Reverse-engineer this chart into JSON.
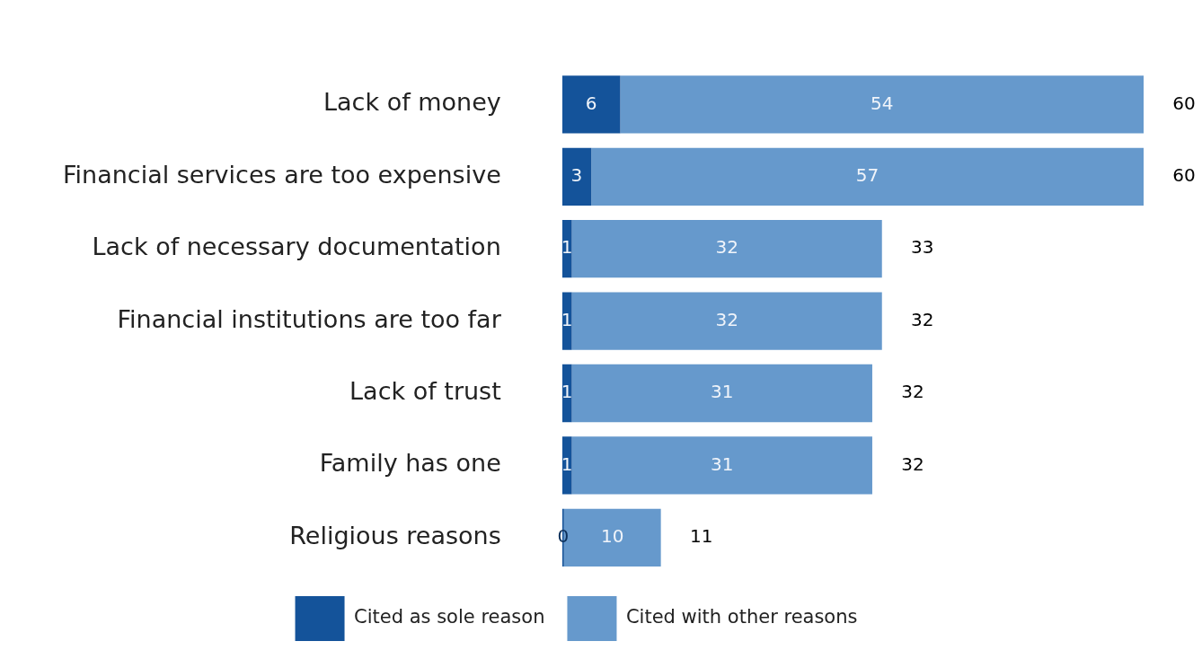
{
  "chart_data": {
    "type": "bar",
    "orientation": "horizontal",
    "stacked": true,
    "categories": [
      "Lack of money",
      "Financial services are too expensive",
      "Lack of necessary documentation",
      "Financial institutions are too far",
      "Lack of trust",
      "Family has one",
      "Religious reasons"
    ],
    "series": [
      {
        "name": "Cited as sole reason",
        "color": "#14539a",
        "values": [
          6,
          3,
          1,
          1,
          1,
          1,
          0
        ]
      },
      {
        "name": "Cited with other reasons",
        "color": "#6699cc",
        "values": [
          54,
          57,
          32,
          32,
          31,
          31,
          10
        ]
      }
    ],
    "data_labels": true,
    "totals": [
      "60",
      "60",
      "33",
      "32",
      "32",
      "32",
      "11"
    ],
    "legend": "bottom",
    "tick_labels": "y"
  }
}
